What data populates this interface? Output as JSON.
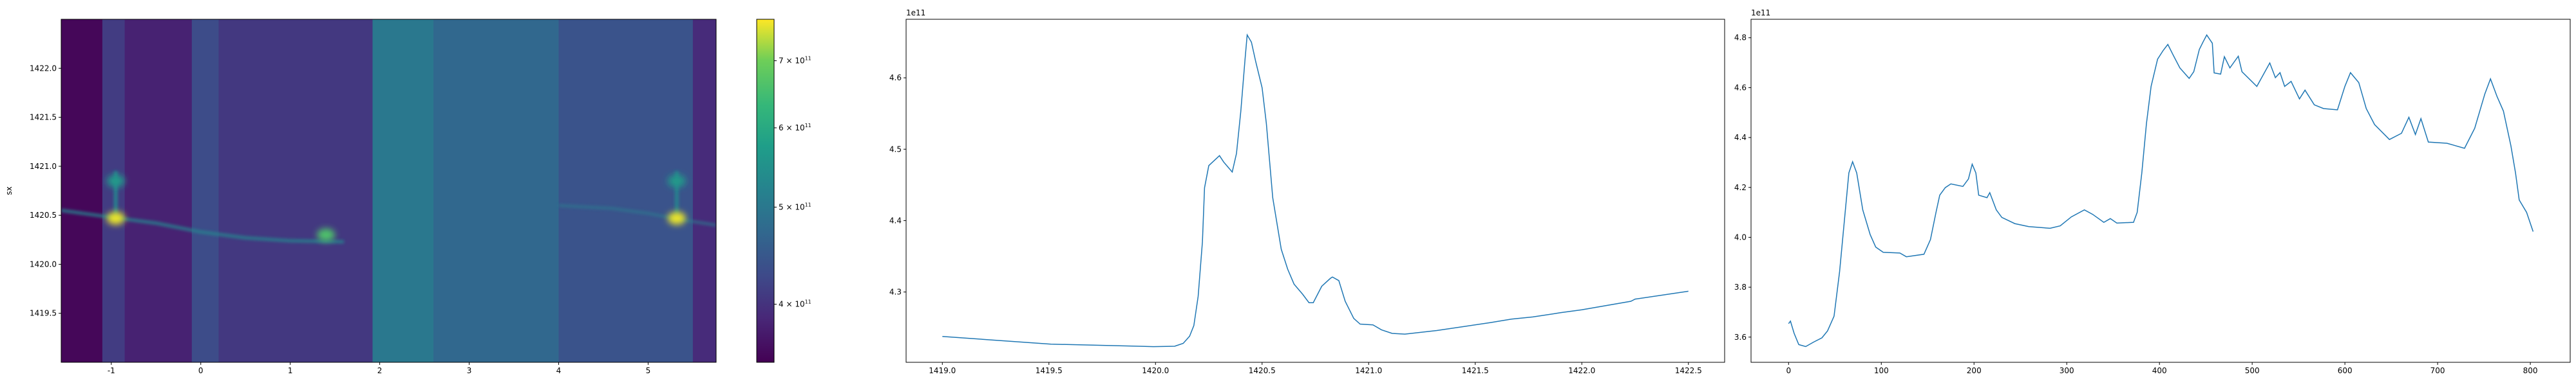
{
  "chart_data": [
    {
      "type": "heatmap",
      "ylabel": "sx",
      "xlim": [
        -1.56,
        5.76
      ],
      "ylim": [
        1419.0,
        1422.5
      ],
      "xticks": [
        "-1",
        "0",
        "1",
        "2",
        "3",
        "4",
        "5"
      ],
      "xtick_values": [
        -1,
        0,
        1,
        2,
        3,
        4,
        5
      ],
      "yticks": [
        "1419.5",
        "1420.0",
        "1420.5",
        "1421.0",
        "1421.5",
        "1422.0"
      ],
      "ytick_values": [
        1419.5,
        1420.0,
        1420.5,
        1421.0,
        1421.5,
        1422.0
      ],
      "colormap": "viridis",
      "colorbar": {
        "scale": "log",
        "range": [
          350000000000.0,
          770000000000.0
        ],
        "tick_values": [
          400000000000.0,
          500000000000.0,
          600000000000.0,
          700000000000.0
        ],
        "tick_labels": [
          {
            "mant": "4 × 10",
            "exp": "11"
          },
          {
            "mant": "5 × 10",
            "exp": "11"
          },
          {
            "mant": "6 × 10",
            "exp": "11"
          },
          {
            "mant": "7 × 10",
            "exp": "11"
          }
        ]
      },
      "bands": [
        {
          "x": [
            -1.56,
            -1.1
          ],
          "value": 355000000000.0
        },
        {
          "x": [
            -1.1,
            -0.85
          ],
          "value": 410000000000.0
        },
        {
          "x": [
            -0.85,
            -0.1
          ],
          "value": 380000000000.0
        },
        {
          "x": [
            -0.1,
            0.2
          ],
          "value": 430000000000.0
        },
        {
          "x": [
            0.2,
            1.92
          ],
          "value": 405000000000.0
        },
        {
          "x": [
            1.92,
            2.6
          ],
          "value": 500000000000.0
        },
        {
          "x": [
            2.6,
            4.0
          ],
          "value": 470000000000.0
        },
        {
          "x": [
            4.0,
            5.5
          ],
          "value": 440000000000.0
        },
        {
          "x": [
            5.5,
            5.76
          ],
          "value": 390000000000.0
        }
      ],
      "hotspots": [
        {
          "x": -0.95,
          "y": 1420.47,
          "value": 760000000000.0
        },
        {
          "x": -0.95,
          "y": 1420.85,
          "value": 560000000000.0
        },
        {
          "x": 1.4,
          "y": 1420.3,
          "value": 660000000000.0
        },
        {
          "x": 5.32,
          "y": 1420.47,
          "value": 760000000000.0
        },
        {
          "x": 5.32,
          "y": 1420.85,
          "value": 560000000000.0
        }
      ]
    },
    {
      "type": "line",
      "offset_label": "1e11",
      "xlim": [
        1418.83,
        1422.67
      ],
      "ylim": [
        4.2015,
        4.682
      ],
      "xticks": [
        "1419.0",
        "1419.5",
        "1420.0",
        "1420.5",
        "1421.0",
        "1421.5",
        "1422.0",
        "1422.5"
      ],
      "xtick_values": [
        1419.0,
        1419.5,
        1420.0,
        1420.5,
        1421.0,
        1421.5,
        1422.0,
        1422.5
      ],
      "yticks": [
        "4.3",
        "4.4",
        "4.5",
        "4.6"
      ],
      "ytick_values": [
        4.3,
        4.4,
        4.5,
        4.6
      ],
      "color": "#1f77b4",
      "x": [
        1419.0,
        1419.51,
        1419.99,
        1420.09,
        1420.13,
        1420.16,
        1420.18,
        1420.2,
        1420.22,
        1420.23,
        1420.25,
        1420.3,
        1420.32,
        1420.36,
        1420.38,
        1420.4,
        1420.42,
        1420.43,
        1420.45,
        1420.47,
        1420.5,
        1420.52,
        1420.55,
        1420.59,
        1420.62,
        1420.65,
        1420.69,
        1420.72,
        1420.74,
        1420.78,
        1420.82,
        1420.83,
        1420.86,
        1420.89,
        1420.93,
        1420.96,
        1421.02,
        1421.06,
        1421.11,
        1421.17,
        1421.32,
        1421.57,
        1421.67,
        1421.77,
        1421.9,
        1422.0,
        1422.23,
        1422.25,
        1422.5
      ],
      "y": [
        4.2377,
        4.227,
        4.2235,
        4.224,
        4.228,
        4.238,
        4.253,
        4.294,
        4.37,
        4.446,
        4.477,
        4.491,
        4.482,
        4.468,
        4.494,
        4.553,
        4.626,
        4.66,
        4.65,
        4.623,
        4.586,
        4.536,
        4.432,
        4.36,
        4.332,
        4.311,
        4.297,
        4.285,
        4.285,
        4.308,
        4.319,
        4.321,
        4.316,
        4.287,
        4.263,
        4.255,
        4.254,
        4.247,
        4.242,
        4.241,
        4.246,
        4.257,
        4.262,
        4.265,
        4.271,
        4.275,
        4.287,
        4.29,
        4.301
      ]
    },
    {
      "type": "line",
      "offset_label": "1e11",
      "xlim": [
        -40.5,
        843
      ],
      "ylim": [
        3.499,
        4.874
      ],
      "xticks": [
        "0",
        "100",
        "200",
        "300",
        "400",
        "500",
        "600",
        "700",
        "800"
      ],
      "xtick_values": [
        0,
        100,
        200,
        300,
        400,
        500,
        600,
        700,
        800
      ],
      "yticks": [
        "3.6",
        "3.8",
        "4.0",
        "4.2",
        "4.4",
        "4.6",
        "4.8"
      ],
      "ytick_values": [
        3.6,
        3.8,
        4.0,
        4.2,
        4.4,
        4.6,
        4.8
      ],
      "color": "#1f77b4",
      "x": [
        0,
        2,
        6,
        11,
        18.5,
        27,
        36,
        42,
        49,
        55,
        60,
        65,
        69,
        73.5,
        80,
        88,
        94,
        102,
        120,
        127,
        146,
        153,
        159,
        163,
        169,
        175,
        188,
        194,
        198,
        202,
        205,
        214,
        217,
        224,
        230,
        244,
        259,
        282,
        293,
        305,
        319,
        328,
        340,
        347,
        354,
        372,
        376,
        381,
        386,
        391,
        398,
        404,
        409,
        415,
        422,
        432,
        437,
        443,
        447,
        451,
        457,
        459,
        466,
        470,
        476,
        485,
        489,
        505,
        519,
        525,
        530,
        535,
        542,
        551,
        557,
        567,
        577,
        592,
        600,
        606,
        615,
        623,
        632,
        648,
        661,
        669,
        676,
        682,
        690,
        710,
        729,
        740,
        751,
        757,
        764,
        771,
        779,
        784,
        788,
        796,
        803
      ],
      "y": [
        3.654,
        3.664,
        3.615,
        3.57,
        3.562,
        3.58,
        3.597,
        3.625,
        3.684,
        3.862,
        4.06,
        4.258,
        4.303,
        4.258,
        4.11,
        4.011,
        3.961,
        3.94,
        3.937,
        3.922,
        3.932,
        3.991,
        4.1,
        4.169,
        4.199,
        4.214,
        4.204,
        4.234,
        4.293,
        4.258,
        4.169,
        4.159,
        4.179,
        4.11,
        4.08,
        4.055,
        4.043,
        4.036,
        4.046,
        4.082,
        4.11,
        4.092,
        4.06,
        4.075,
        4.057,
        4.06,
        4.1,
        4.258,
        4.456,
        4.605,
        4.714,
        4.749,
        4.773,
        4.729,
        4.679,
        4.637,
        4.664,
        4.753,
        4.783,
        4.811,
        4.778,
        4.659,
        4.654,
        4.724,
        4.679,
        4.726,
        4.664,
        4.605,
        4.699,
        4.64,
        4.66,
        4.605,
        4.625,
        4.555,
        4.59,
        4.531,
        4.516,
        4.511,
        4.605,
        4.66,
        4.62,
        4.516,
        4.452,
        4.392,
        4.417,
        4.481,
        4.412,
        4.476,
        4.382,
        4.377,
        4.357,
        4.437,
        4.575,
        4.635,
        4.565,
        4.506,
        4.367,
        4.258,
        4.15,
        4.1,
        4.023
      ]
    }
  ]
}
